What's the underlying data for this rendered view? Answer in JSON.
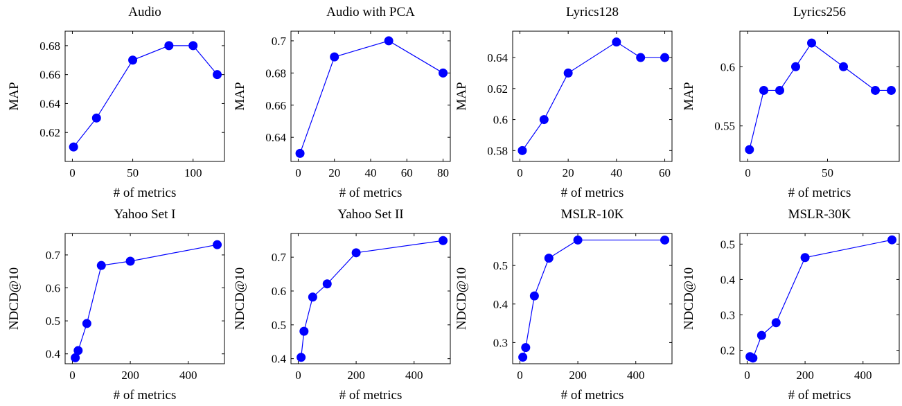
{
  "chart_data": [
    {
      "type": "line",
      "title": "Audio",
      "xlabel": "# of metrics",
      "ylabel": "MAP",
      "xlim": [
        -6,
        126
      ],
      "ylim": [
        0.6,
        0.69
      ],
      "xticks": [
        0,
        50,
        100
      ],
      "xtick_labels": [
        "0",
        "50",
        "100"
      ],
      "yticks": [
        0.62,
        0.64,
        0.66,
        0.68
      ],
      "ytick_labels": [
        "0.62",
        "0.64",
        "0.66",
        "0.68"
      ],
      "color": "#0000ff",
      "series": [
        {
          "x": [
            1,
            20,
            50,
            80,
            100,
            120
          ],
          "y": [
            0.61,
            0.63,
            0.67,
            0.68,
            0.68,
            0.66
          ]
        }
      ]
    },
    {
      "type": "line",
      "title": "Audio with PCA",
      "xlabel": "# of metrics",
      "ylabel": "MAP",
      "xlim": [
        -4,
        84
      ],
      "ylim": [
        0.625,
        0.706
      ],
      "xticks": [
        0,
        20,
        40,
        60,
        80
      ],
      "xtick_labels": [
        "0",
        "20",
        "40",
        "60",
        "80"
      ],
      "yticks": [
        0.64,
        0.66,
        0.68,
        0.7
      ],
      "ytick_labels": [
        "0.64",
        "0.66",
        "0.68",
        "0.7"
      ],
      "color": "#0000ff",
      "series": [
        {
          "x": [
            1,
            20,
            50,
            80
          ],
          "y": [
            0.63,
            0.69,
            0.7,
            0.68
          ]
        }
      ]
    },
    {
      "type": "line",
      "title": "Lyrics128",
      "xlabel": "# of metrics",
      "ylabel": "MAP",
      "xlim": [
        -3,
        63
      ],
      "ylim": [
        0.573,
        0.657
      ],
      "xticks": [
        0,
        20,
        40,
        60
      ],
      "xtick_labels": [
        "0",
        "20",
        "40",
        "60"
      ],
      "yticks": [
        0.58,
        0.6,
        0.62,
        0.64
      ],
      "ytick_labels": [
        "0.58",
        "0.6",
        "0.62",
        "0.64"
      ],
      "color": "#0000ff",
      "series": [
        {
          "x": [
            1,
            10,
            20,
            40,
            50,
            60
          ],
          "y": [
            0.58,
            0.6,
            0.63,
            0.65,
            0.64,
            0.64
          ]
        }
      ]
    },
    {
      "type": "line",
      "title": "Lyrics256",
      "xlabel": "# of metrics",
      "ylabel": "MAP",
      "xlim": [
        -5,
        95
      ],
      "ylim": [
        0.52,
        0.63
      ],
      "xticks": [
        0,
        50
      ],
      "xtick_labels": [
        "0",
        "50"
      ],
      "yticks": [
        0.55,
        0.6
      ],
      "ytick_labels": [
        "0.55",
        "0.6"
      ],
      "color": "#0000ff",
      "series": [
        {
          "x": [
            1,
            10,
            20,
            30,
            40,
            60,
            80,
            90
          ],
          "y": [
            0.53,
            0.58,
            0.58,
            0.6,
            0.62,
            0.6,
            0.58,
            0.58
          ]
        }
      ]
    },
    {
      "type": "line",
      "title": "Yahoo Set I",
      "xlabel": "# of metrics",
      "ylabel": "NDCD@10",
      "xlim": [
        -25,
        525
      ],
      "ylim": [
        0.37,
        0.765
      ],
      "xticks": [
        0,
        200,
        400
      ],
      "xtick_labels": [
        "0",
        "200",
        "400"
      ],
      "yticks": [
        0.4,
        0.5,
        0.6,
        0.7
      ],
      "ytick_labels": [
        "0.4",
        "0.5",
        "0.6",
        "0.7"
      ],
      "color": "#0000ff",
      "series": [
        {
          "x": [
            10,
            20,
            50,
            100,
            200,
            500
          ],
          "y": [
            0.388,
            0.41,
            0.492,
            0.668,
            0.681,
            0.731
          ]
        }
      ]
    },
    {
      "type": "line",
      "title": "Yahoo Set II",
      "xlabel": "# of metrics",
      "ylabel": "NDCD@10",
      "xlim": [
        -25,
        525
      ],
      "ylim": [
        0.385,
        0.77
      ],
      "xticks": [
        0,
        200,
        400
      ],
      "xtick_labels": [
        "0",
        "200",
        "400"
      ],
      "yticks": [
        0.4,
        0.5,
        0.6,
        0.7
      ],
      "ytick_labels": [
        "0.4",
        "0.5",
        "0.6",
        "0.7"
      ],
      "color": "#0000ff",
      "series": [
        {
          "x": [
            10,
            20,
            50,
            100,
            200,
            500
          ],
          "y": [
            0.404,
            0.481,
            0.582,
            0.621,
            0.713,
            0.749
          ]
        }
      ]
    },
    {
      "type": "line",
      "title": "MSLR-10K",
      "xlabel": "# of metrics",
      "ylabel": "NDCD@10",
      "xlim": [
        -25,
        525
      ],
      "ylim": [
        0.245,
        0.583
      ],
      "xticks": [
        0,
        200,
        400
      ],
      "xtick_labels": [
        "0",
        "200",
        "400"
      ],
      "yticks": [
        0.3,
        0.4,
        0.5
      ],
      "ytick_labels": [
        "0.3",
        "0.4",
        "0.5"
      ],
      "color": "#0000ff",
      "series": [
        {
          "x": [
            10,
            20,
            50,
            100,
            200,
            500
          ],
          "y": [
            0.262,
            0.287,
            0.421,
            0.519,
            0.566,
            0.566
          ]
        }
      ]
    },
    {
      "type": "line",
      "title": "MSLR-30K",
      "xlabel": "# of metrics",
      "ylabel": "NDCD@10",
      "xlim": [
        -25,
        525
      ],
      "ylim": [
        0.162,
        0.53
      ],
      "xticks": [
        0,
        200,
        400
      ],
      "xtick_labels": [
        "0",
        "200",
        "400"
      ],
      "yticks": [
        0.2,
        0.3,
        0.4,
        0.5
      ],
      "ytick_labels": [
        "0.2",
        "0.3",
        "0.4",
        "0.5"
      ],
      "color": "#0000ff",
      "series": [
        {
          "x": [
            10,
            20,
            50,
            100,
            200,
            500
          ],
          "y": [
            0.182,
            0.178,
            0.242,
            0.278,
            0.462,
            0.512
          ]
        }
      ]
    }
  ]
}
